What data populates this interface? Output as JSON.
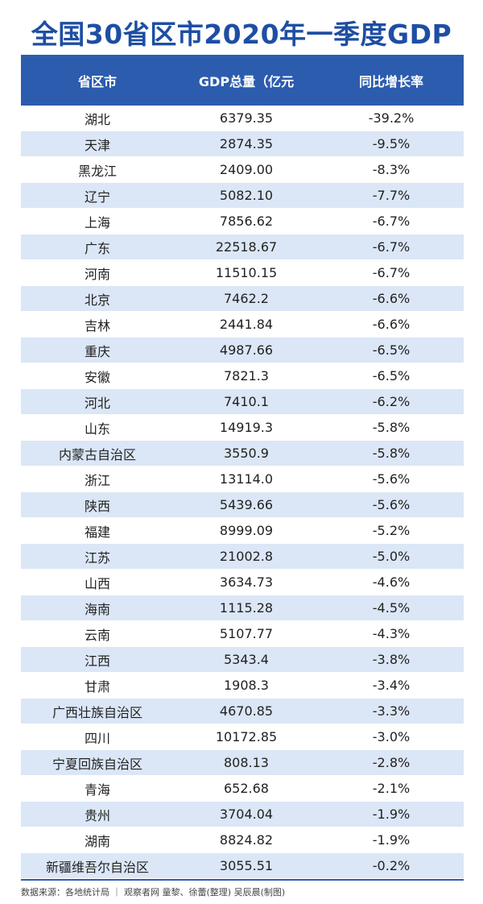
{
  "title": "全国30省区市2020年一季度GDP",
  "footer": "数据来源：各地统计局 ｜ 观察者网 童黎、徐蕾(整理) 吴辰晨(制图)",
  "colors": {
    "title": "#1e4ea3",
    "header_bg": "#2c5cae",
    "stripe": "#dbe6f6"
  },
  "chart_data": {
    "type": "table",
    "title": "全国30省区市2020年一季度GDP",
    "columns": [
      "省区市",
      "GDP总量（亿元",
      "同比增长率"
    ],
    "rows": [
      [
        "湖北",
        "6379.35",
        "-39.2%"
      ],
      [
        "天津",
        "2874.35",
        "-9.5%"
      ],
      [
        "黑龙江",
        "2409.00",
        "-8.3%"
      ],
      [
        "辽宁",
        "5082.10",
        "-7.7%"
      ],
      [
        "上海",
        "7856.62",
        "-6.7%"
      ],
      [
        "广东",
        "22518.67",
        "-6.7%"
      ],
      [
        "河南",
        "11510.15",
        "-6.7%"
      ],
      [
        "北京",
        "7462.2",
        "-6.6%"
      ],
      [
        "吉林",
        "2441.84",
        "-6.6%"
      ],
      [
        "重庆",
        "4987.66",
        "-6.5%"
      ],
      [
        "安徽",
        "7821.3",
        "-6.5%"
      ],
      [
        "河北",
        "7410.1",
        "-6.2%"
      ],
      [
        "山东",
        "14919.3",
        "-5.8%"
      ],
      [
        "内蒙古自治区",
        "3550.9",
        "-5.8%"
      ],
      [
        "浙江",
        "13114.0",
        "-5.6%"
      ],
      [
        "陕西",
        "5439.66",
        "-5.6%"
      ],
      [
        "福建",
        "8999.09",
        "-5.2%"
      ],
      [
        "江苏",
        "21002.8",
        "-5.0%"
      ],
      [
        "山西",
        "3634.73",
        "-4.6%"
      ],
      [
        "海南",
        "1115.28",
        "-4.5%"
      ],
      [
        "云南",
        "5107.77",
        "-4.3%"
      ],
      [
        "江西",
        "5343.4",
        "-3.8%"
      ],
      [
        "甘肃",
        "1908.3",
        "-3.4%"
      ],
      [
        "广西壮族自治区",
        "4670.85",
        "-3.3%"
      ],
      [
        "四川",
        "10172.85",
        "-3.0%"
      ],
      [
        "宁夏回族自治区",
        "808.13",
        "-2.8%"
      ],
      [
        "青海",
        "652.68",
        "-2.1%"
      ],
      [
        "贵州",
        "3704.04",
        "-1.9%"
      ],
      [
        "湖南",
        "8824.82",
        "-1.9%"
      ],
      [
        "新疆维吾尔自治区",
        "3055.51",
        "-0.2%"
      ]
    ]
  }
}
